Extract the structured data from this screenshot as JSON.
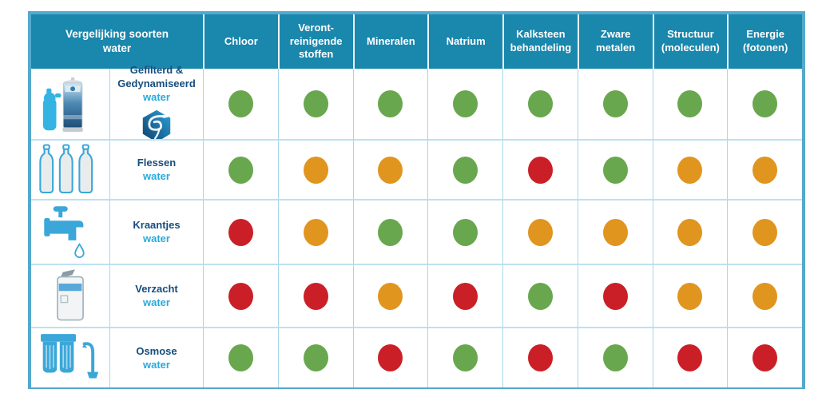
{
  "chart_data": {
    "type": "table",
    "title": "Vergelijking soorten water",
    "columns": [
      "Chloor",
      "Veront-reinigende stoffen",
      "Mineralen",
      "Natrium",
      "Kalksteen behandeling",
      "Zware metalen",
      "Structuur (moleculen)",
      "Energie (fotonen)"
    ],
    "rating_scale": [
      "green",
      "orange",
      "red"
    ],
    "rows": [
      {
        "icon": "water-filter-dynamizer-icon",
        "label": "Gefilterd & Gedynamiseerd",
        "sublabel": "water",
        "logo": "vortex-logo",
        "ratings": [
          "green",
          "green",
          "green",
          "green",
          "green",
          "green",
          "green",
          "green"
        ]
      },
      {
        "icon": "bottles-icon",
        "label": "Flessen",
        "sublabel": "water",
        "logo": "",
        "ratings": [
          "green",
          "orange",
          "orange",
          "green",
          "red",
          "green",
          "orange",
          "orange"
        ]
      },
      {
        "icon": "tap-icon",
        "label": "Kraantjes",
        "sublabel": "water",
        "logo": "",
        "ratings": [
          "red",
          "orange",
          "green",
          "green",
          "orange",
          "orange",
          "orange",
          "orange"
        ]
      },
      {
        "icon": "softener-icon",
        "label": "Verzacht",
        "sublabel": "water",
        "logo": "",
        "ratings": [
          "red",
          "red",
          "orange",
          "red",
          "green",
          "red",
          "orange",
          "orange"
        ]
      },
      {
        "icon": "osmosis-icon",
        "label": "Osmose",
        "sublabel": "water",
        "logo": "",
        "ratings": [
          "green",
          "green",
          "red",
          "green",
          "red",
          "green",
          "red",
          "red"
        ]
      }
    ]
  },
  "colors": {
    "green": "#69a74e",
    "orange": "#e0951f",
    "red": "#cb1f27",
    "header_bg": "#1a87ad",
    "outer_border": "#54a9cc",
    "grid_line": "#a6d7e8",
    "row_line": "#bce2ef",
    "label_text": "#164d7d",
    "sublabel_text": "#2aa9dc",
    "icon_blue": "#3ba7d9"
  }
}
